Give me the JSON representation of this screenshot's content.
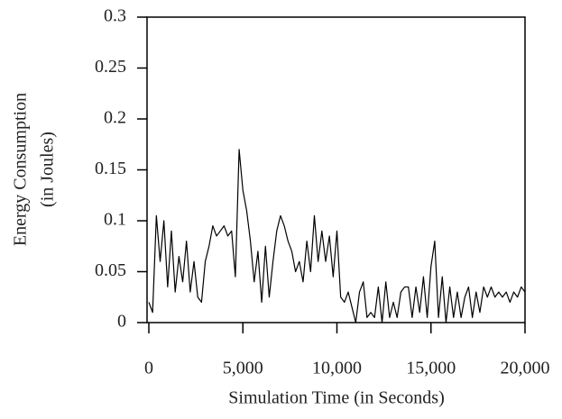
{
  "chart_data": {
    "type": "line",
    "xlabel": "Simulation Time (in Seconds)",
    "ylabel": [
      "Energy Consumption",
      "(in Joules)"
    ],
    "x": [
      0,
      200,
      400,
      600,
      800,
      1000,
      1200,
      1400,
      1600,
      1800,
      2000,
      2200,
      2400,
      2600,
      2800,
      3000,
      3200,
      3400,
      3600,
      3800,
      4000,
      4200,
      4400,
      4600,
      4800,
      5000,
      5200,
      5400,
      5600,
      5800,
      6000,
      6200,
      6400,
      6600,
      6800,
      7000,
      7200,
      7400,
      7600,
      7800,
      8000,
      8200,
      8400,
      8600,
      8800,
      9000,
      9200,
      9400,
      9600,
      9800,
      10000,
      10200,
      10400,
      10600,
      10800,
      11000,
      11200,
      11400,
      11600,
      11800,
      12000,
      12200,
      12400,
      12600,
      12800,
      13000,
      13200,
      13400,
      13600,
      13800,
      14000,
      14200,
      14400,
      14600,
      14800,
      15000,
      15200,
      15400,
      15600,
      15800,
      16000,
      16200,
      16400,
      16600,
      16800,
      17000,
      17200,
      17400,
      17600,
      17800,
      18000,
      18200,
      18400,
      18600,
      18800,
      19000,
      19200,
      19400,
      19600,
      19800,
      20000
    ],
    "series": [
      {
        "color": "#000000",
        "values": [
          0.02,
          0.01,
          0.105,
          0.06,
          0.1,
          0.035,
          0.09,
          0.03,
          0.065,
          0.04,
          0.08,
          0.03,
          0.06,
          0.025,
          0.02,
          0.06,
          0.075,
          0.095,
          0.085,
          0.09,
          0.095,
          0.085,
          0.09,
          0.045,
          0.17,
          0.13,
          0.11,
          0.08,
          0.04,
          0.07,
          0.02,
          0.075,
          0.025,
          0.06,
          0.09,
          0.105,
          0.095,
          0.08,
          0.07,
          0.05,
          0.06,
          0.04,
          0.08,
          0.05,
          0.105,
          0.06,
          0.09,
          0.06,
          0.085,
          0.045,
          0.09,
          0.025,
          0.02,
          0.03,
          0.015,
          0.0,
          0.03,
          0.04,
          0.005,
          0.01,
          0.005,
          0.035,
          0.0,
          0.04,
          0.005,
          0.02,
          0.005,
          0.03,
          0.035,
          0.035,
          0.005,
          0.035,
          0.01,
          0.045,
          0.005,
          0.055,
          0.08,
          0.005,
          0.045,
          0.0,
          0.035,
          0.005,
          0.03,
          0.005,
          0.025,
          0.035,
          0.005,
          0.03,
          0.01,
          0.035,
          0.025,
          0.035,
          0.025,
          0.03,
          0.025,
          0.03,
          0.02,
          0.03,
          0.025,
          0.035,
          0.03
        ]
      }
    ],
    "xlim": [
      0,
      20000
    ],
    "xticks": [
      {
        "value": 0,
        "label": "0"
      },
      {
        "value": 5000,
        "label": "5,000"
      },
      {
        "value": 10000,
        "label": "10,000"
      },
      {
        "value": 15000,
        "label": "15,000"
      },
      {
        "value": 20000,
        "label": "20,000"
      }
    ],
    "ylim": [
      0,
      0.3
    ],
    "yticks": [
      0,
      0.05,
      0.1,
      0.15,
      0.2,
      0.25,
      0.3
    ],
    "grid": false
  }
}
